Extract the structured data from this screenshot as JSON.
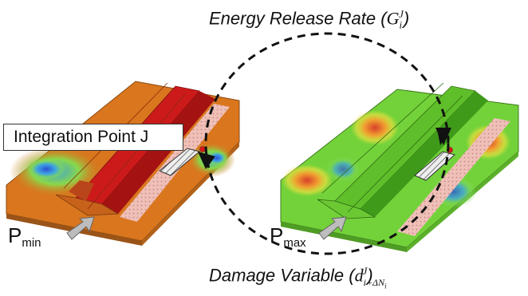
{
  "labels": {
    "energy_release_rate": "Energy Release Rate",
    "energy_symbol": "G",
    "energy_sub": "i",
    "energy_sup": "J",
    "damage_variable": "Damage Variable",
    "damage_symbol": "d",
    "damage_sub": "i+ΔN",
    "damage_sub_sub": "i",
    "damage_sup": "J",
    "integration_point": "Integration Point J",
    "p_min_base": "P",
    "p_min_sub": "min",
    "p_max_base": "P",
    "p_max_sub": "max"
  },
  "colors": {
    "left_panel": "#d9761e",
    "left_stiffener": "#cc1a1a",
    "right_panel": "#73d23a",
    "right_stiffener": "#5fbf2a",
    "hatched_strip": "#e8a8a0",
    "loop_arrow": "#111111"
  }
}
